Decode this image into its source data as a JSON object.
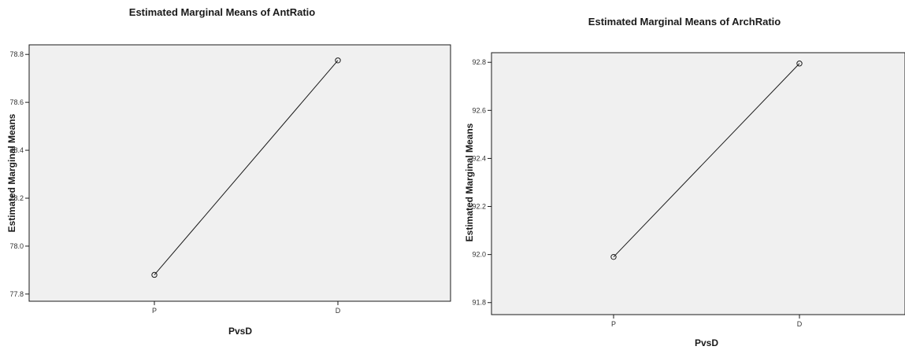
{
  "chart_data": [
    {
      "type": "line",
      "title": "Estimated Marginal Means of AntRatio",
      "xlabel": "PvsD",
      "ylabel": "Estimated Marginal Means",
      "categories": [
        "P",
        "D"
      ],
      "series": [
        {
          "values": [
            77.88,
            78.775
          ]
        }
      ],
      "yticks": [
        "77.8",
        "78.0",
        "78.2",
        "78.4",
        "78.6",
        "78.8"
      ],
      "ylim": [
        77.77,
        78.84
      ],
      "grid": false,
      "legend": "none",
      "marker": "open-circle",
      "colors": {
        "background": "#f0f0f0",
        "line": "#1a1a1a"
      }
    },
    {
      "type": "line",
      "title": "Estimated Marginal Means of ArchRatio",
      "xlabel": "PvsD",
      "ylabel": "Estimated Marginal Means",
      "categories": [
        "P",
        "D"
      ],
      "series": [
        {
          "values": [
            91.99,
            92.795
          ]
        }
      ],
      "yticks": [
        "91.8",
        "92.0",
        "92.2",
        "92.4",
        "92.6",
        "92.8"
      ],
      "ylim": [
        91.75,
        92.84
      ],
      "grid": false,
      "legend": "none",
      "marker": "open-circle",
      "colors": {
        "background": "#f0f0f0",
        "line": "#1a1a1a"
      }
    }
  ]
}
